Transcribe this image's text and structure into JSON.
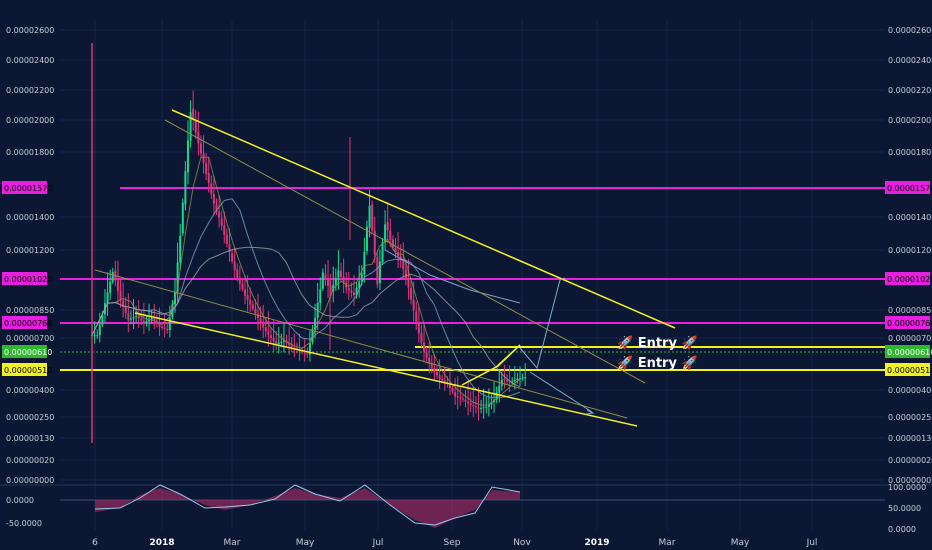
{
  "chart_data": [
    {
      "type": "line",
      "title": "",
      "price_axis_labels": [
        "0.00002600",
        "0.00002400",
        "0.00002200",
        "0.00002000",
        "0.00001800",
        "0.00001400",
        "0.00001200",
        "0.00000850",
        "0.00000700",
        "0.00000400",
        "0.00000250",
        "0.00000130",
        "0.00000020",
        "0.00000000"
      ],
      "x_ticks": [
        "6",
        "2018",
        "Mar",
        "May",
        "Jul",
        "Sep",
        "Nov",
        "2019",
        "Mar",
        "May",
        "Jul"
      ],
      "x_ticks_bold": [
        "2018",
        "2019"
      ],
      "horizontal_levels": [
        {
          "label": "0.00001570",
          "color": "#e81ee0",
          "badge_text_color": "#000000"
        },
        {
          "label": "0.00001026",
          "color": "#e81ee0",
          "badge_text_color": "#000000"
        },
        {
          "label": "0.00000768",
          "color": "#e81ee0",
          "badge_text_color": "#000000"
        },
        {
          "label": "0.00000510",
          "color": "#f2f21e",
          "badge_text_color": "#000000"
        }
      ],
      "current_price_badge": {
        "label": "0.00000610",
        "color": "#2eb82e",
        "text_color": "#ffffff"
      },
      "annotations": [
        "🚀 Entry 🚀",
        "🚀 Entry 🚀"
      ],
      "colors": {
        "background": "#0b1733",
        "up": "#19d98c",
        "down": "#e0357a",
        "trendline": "#f2f21e",
        "levels": "#e81ee0"
      },
      "price_series": [
        8.5e-06,
        1.03e-05,
        1.22e-05,
        1.05e-05,
        9.4e-06,
        9.6e-06,
        9.2e-06,
        9.5e-06,
        9e-06,
        8.8e-06,
        1.1e-05,
        1.6e-05,
        2.15e-05,
        1.95e-05,
        1.78e-05,
        1.6e-05,
        1.48e-05,
        1.32e-05,
        1.18e-05,
        1.08e-05,
        1e-05,
        9.2e-06,
        8.5e-06,
        8e-06,
        8.2e-06,
        7.8e-06,
        7.6e-06,
        7.4e-06,
        9.5e-06,
        1.2e-05,
        1.1e-05,
        1.22e-05,
        1.12e-05,
        1.08e-05,
        1.2e-05,
        1.6e-05,
        1.15e-05,
        1.5e-05,
        1.35e-05,
        1.28e-05,
        1.12e-05,
        9.2e-06,
        7.5e-06,
        6.6e-06,
        6e-06,
        5.7e-06,
        5e-06,
        4.8e-06,
        4.5e-06,
        4.3e-06,
        4.4e-06,
        4.8e-06,
        6e-06,
        5.8e-06,
        6e-06,
        6.1e-06
      ]
    },
    {
      "type": "area",
      "y_labels_left": [
        "0.0000",
        "-50.0000"
      ],
      "y_labels_right": [
        "100.0000",
        "50.0000",
        "0.0000"
      ]
    }
  ]
}
